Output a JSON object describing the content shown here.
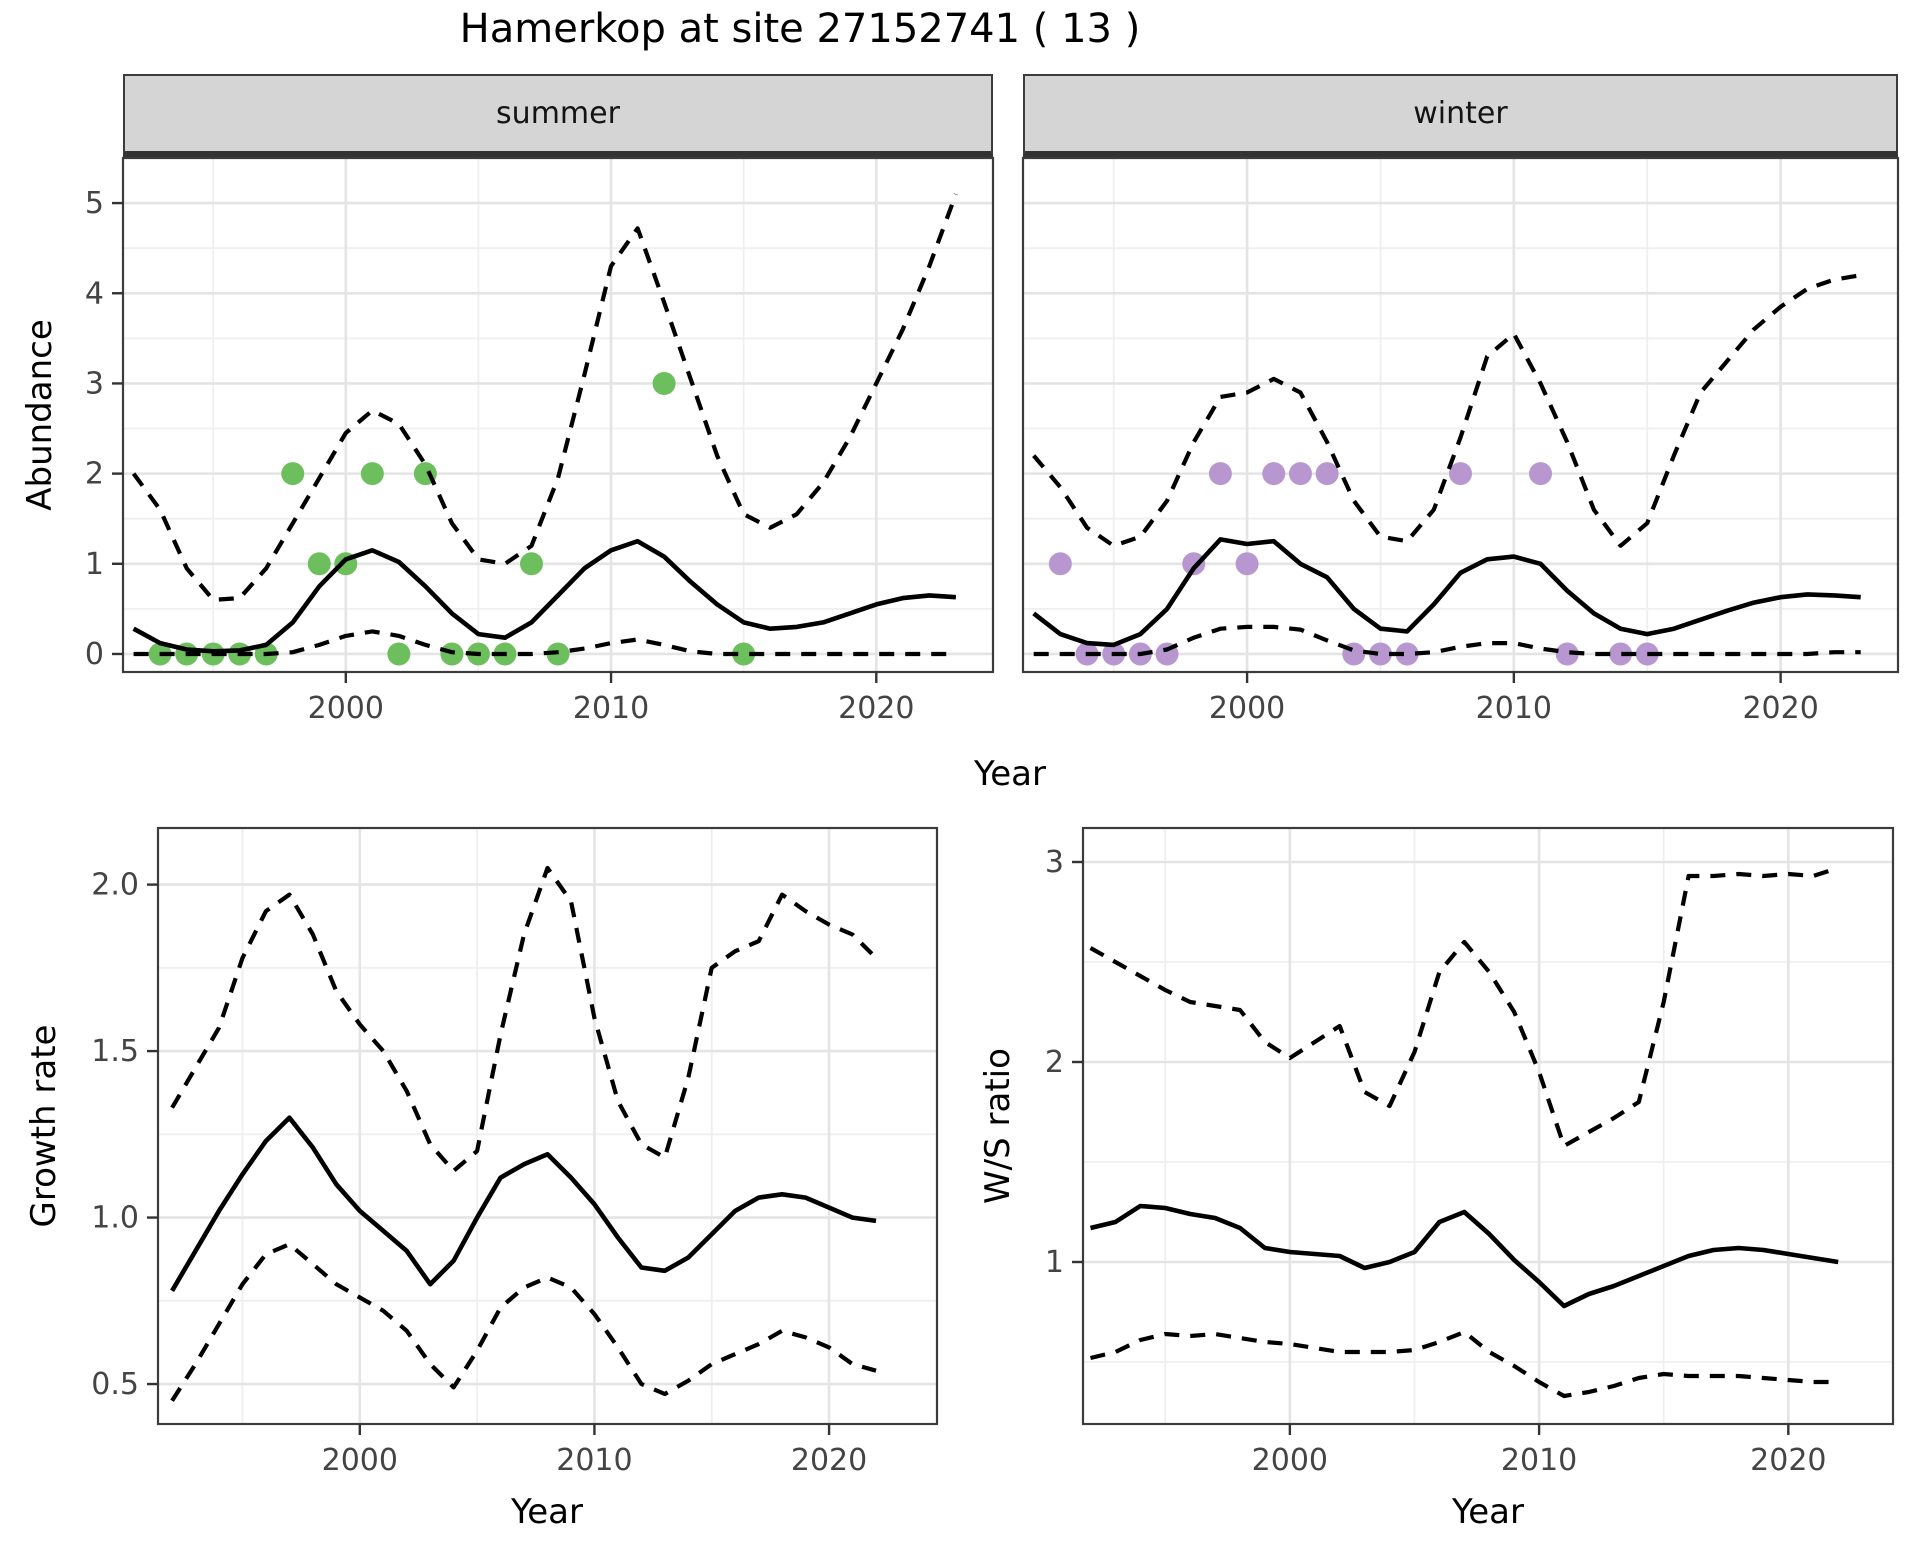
{
  "title": "Hamerkop at site 27152741 ( 13 )",
  "colors": {
    "line": "#000000",
    "observed_summer_point": "#6CBF5C",
    "observed_winter_point": "#B897D0",
    "strip_background": "#D5D5D5",
    "strip_border": "#333333",
    "panel_border": "#3C3C3C",
    "grid_major": "#E4E4E4",
    "grid_minor": "#EFEFEF",
    "tick_label": "#444444"
  },
  "chart_data": [
    {
      "id": "abundance-summer",
      "type": "line",
      "facet_label": "summer",
      "xlabel": "Year",
      "ylabel": "Abundance",
      "xlim": [
        1991.6,
        2024.4
      ],
      "ylim": [
        -0.2,
        5.5
      ],
      "x_axis": {
        "ticks": [
          {
            "value": 2000,
            "label": "2000"
          },
          {
            "value": 2010,
            "label": "2010"
          },
          {
            "value": 2020,
            "label": "2020"
          }
        ],
        "minor": [
          1995,
          2005,
          2015
        ]
      },
      "y_axis": {
        "ticks": [
          {
            "value": 0,
            "label": "0"
          },
          {
            "value": 1,
            "label": "1"
          },
          {
            "value": 2,
            "label": "2"
          },
          {
            "value": 3,
            "label": "3"
          },
          {
            "value": 4,
            "label": "4"
          },
          {
            "value": 5,
            "label": "5"
          }
        ],
        "minor": [
          0.5,
          1.5,
          2.5,
          3.5,
          4.5
        ]
      },
      "years": [
        1992,
        1993,
        1994,
        1995,
        1996,
        1997,
        1998,
        1999,
        2000,
        2001,
        2002,
        2003,
        2004,
        2005,
        2006,
        2007,
        2008,
        2009,
        2010,
        2011,
        2012,
        2013,
        2014,
        2015,
        2016,
        2017,
        2018,
        2019,
        2020,
        2021,
        2022,
        2023
      ],
      "series": [
        {
          "name": "median",
          "style": "solid",
          "values": [
            0.28,
            0.12,
            0.05,
            0.03,
            0.04,
            0.1,
            0.35,
            0.75,
            1.05,
            1.15,
            1.02,
            0.75,
            0.45,
            0.22,
            0.18,
            0.35,
            0.65,
            0.95,
            1.15,
            1.25,
            1.08,
            0.8,
            0.55,
            0.35,
            0.28,
            0.3,
            0.35,
            0.45,
            0.55,
            0.62,
            0.65,
            0.63
          ]
        },
        {
          "name": "upper CI",
          "style": "dashed",
          "values": [
            2.0,
            1.6,
            0.95,
            0.6,
            0.62,
            0.95,
            1.45,
            1.95,
            2.45,
            2.7,
            2.55,
            2.1,
            1.45,
            1.05,
            1.0,
            1.2,
            1.95,
            3.1,
            4.3,
            4.72,
            3.9,
            3.05,
            2.2,
            1.55,
            1.4,
            1.55,
            1.9,
            2.4,
            3.0,
            3.6,
            4.3,
            5.1
          ]
        },
        {
          "name": "lower CI",
          "style": "dashed",
          "values": [
            0,
            0,
            0,
            0,
            0,
            0,
            0.02,
            0.1,
            0.2,
            0.25,
            0.2,
            0.1,
            0.02,
            0,
            0,
            0,
            0.02,
            0.06,
            0.12,
            0.16,
            0.1,
            0.03,
            0,
            0,
            0,
            0,
            0,
            0,
            0,
            0,
            0,
            0
          ]
        }
      ],
      "observations": [
        [
          1993,
          0
        ],
        [
          1994,
          0
        ],
        [
          1995,
          0
        ],
        [
          1996,
          0
        ],
        [
          1997,
          0
        ],
        [
          1998,
          2
        ],
        [
          1999,
          1
        ],
        [
          2000,
          1
        ],
        [
          2001,
          2
        ],
        [
          2002,
          0
        ],
        [
          2003,
          2
        ],
        [
          2004,
          0
        ],
        [
          2005,
          0
        ],
        [
          2006,
          0
        ],
        [
          2007,
          1
        ],
        [
          2008,
          0
        ],
        [
          2012,
          3
        ],
        [
          2015,
          0
        ]
      ],
      "point_color": "#6CBF5C"
    },
    {
      "id": "abundance-winter",
      "type": "line",
      "facet_label": "winter",
      "xlabel": "Year",
      "ylabel": "Abundance",
      "xlim": [
        1991.6,
        2024.4
      ],
      "ylim": [
        -0.2,
        5.5
      ],
      "x_axis": {
        "ticks": [
          {
            "value": 2000,
            "label": "2000"
          },
          {
            "value": 2010,
            "label": "2010"
          },
          {
            "value": 2020,
            "label": "2020"
          }
        ],
        "minor": [
          1995,
          2005,
          2015
        ]
      },
      "y_axis": {
        "ticks": [
          {
            "value": 0,
            "label": "0"
          },
          {
            "value": 1,
            "label": "1"
          },
          {
            "value": 2,
            "label": "2"
          },
          {
            "value": 3,
            "label": "3"
          },
          {
            "value": 4,
            "label": "4"
          },
          {
            "value": 5,
            "label": "5"
          }
        ],
        "minor": [
          0.5,
          1.5,
          2.5,
          3.5,
          4.5
        ]
      },
      "years": [
        1992,
        1993,
        1994,
        1995,
        1996,
        1997,
        1998,
        1999,
        2000,
        2001,
        2002,
        2003,
        2004,
        2005,
        2006,
        2007,
        2008,
        2009,
        2010,
        2011,
        2012,
        2013,
        2014,
        2015,
        2016,
        2017,
        2018,
        2019,
        2020,
        2021,
        2022,
        2023
      ],
      "series": [
        {
          "name": "median",
          "style": "solid",
          "values": [
            0.45,
            0.22,
            0.12,
            0.1,
            0.22,
            0.5,
            0.95,
            1.27,
            1.22,
            1.25,
            1.0,
            0.85,
            0.5,
            0.28,
            0.25,
            0.55,
            0.9,
            1.05,
            1.08,
            1.0,
            0.7,
            0.45,
            0.28,
            0.22,
            0.28,
            0.38,
            0.48,
            0.57,
            0.63,
            0.66,
            0.65,
            0.63
          ]
        },
        {
          "name": "upper CI",
          "style": "dashed",
          "values": [
            2.2,
            1.85,
            1.4,
            1.2,
            1.3,
            1.7,
            2.35,
            2.85,
            2.9,
            3.05,
            2.9,
            2.35,
            1.7,
            1.3,
            1.25,
            1.6,
            2.4,
            3.3,
            3.55,
            3.0,
            2.35,
            1.6,
            1.2,
            1.45,
            2.2,
            2.9,
            3.25,
            3.6,
            3.85,
            4.05,
            4.15,
            4.2
          ]
        },
        {
          "name": "lower CI",
          "style": "dashed",
          "values": [
            0,
            0,
            0,
            0,
            0,
            0.05,
            0.18,
            0.28,
            0.3,
            0.3,
            0.27,
            0.15,
            0.04,
            0,
            0,
            0.02,
            0.08,
            0.12,
            0.12,
            0.06,
            0.02,
            0,
            0,
            0,
            0,
            0,
            0,
            0,
            0,
            0,
            0.02,
            0.02
          ]
        }
      ],
      "observations": [
        [
          1993,
          1
        ],
        [
          1994,
          0
        ],
        [
          1995,
          0
        ],
        [
          1996,
          0
        ],
        [
          1997,
          0
        ],
        [
          1998,
          1
        ],
        [
          1999,
          2
        ],
        [
          2000,
          1
        ],
        [
          2001,
          2
        ],
        [
          2002,
          2
        ],
        [
          2003,
          2
        ],
        [
          2004,
          0
        ],
        [
          2005,
          0
        ],
        [
          2006,
          0
        ],
        [
          2008,
          2
        ],
        [
          2011,
          2
        ],
        [
          2012,
          0
        ],
        [
          2014,
          0
        ],
        [
          2015,
          0
        ]
      ],
      "point_color": "#B897D0"
    },
    {
      "id": "growth-rate",
      "type": "line",
      "facet_label": "",
      "xlabel": "Year",
      "ylabel": "Growth rate",
      "xlim": [
        1991.4,
        2024.6
      ],
      "ylim": [
        0.38,
        2.17
      ],
      "x_axis": {
        "ticks": [
          {
            "value": 2000,
            "label": "2000"
          },
          {
            "value": 2010,
            "label": "2010"
          },
          {
            "value": 2020,
            "label": "2020"
          }
        ],
        "minor": [
          1995,
          2005,
          2015
        ]
      },
      "y_axis": {
        "ticks": [
          {
            "value": 0.5,
            "label": "0.5"
          },
          {
            "value": 1.0,
            "label": "1.0"
          },
          {
            "value": 1.5,
            "label": "1.5"
          },
          {
            "value": 2.0,
            "label": "2.0"
          }
        ],
        "minor": [
          0.75,
          1.25,
          1.75
        ]
      },
      "years": [
        1992,
        1993,
        1994,
        1995,
        1996,
        1997,
        1998,
        1999,
        2000,
        2001,
        2002,
        2003,
        2004,
        2005,
        2006,
        2007,
        2008,
        2009,
        2010,
        2011,
        2012,
        2013,
        2014,
        2015,
        2016,
        2017,
        2018,
        2019,
        2020,
        2021,
        2022
      ],
      "series": [
        {
          "name": "median",
          "style": "solid",
          "values": [
            0.78,
            0.9,
            1.02,
            1.13,
            1.23,
            1.3,
            1.21,
            1.1,
            1.02,
            0.96,
            0.9,
            0.8,
            0.87,
            1.0,
            1.12,
            1.16,
            1.19,
            1.12,
            1.04,
            0.94,
            0.85,
            0.84,
            0.88,
            0.95,
            1.02,
            1.06,
            1.07,
            1.06,
            1.03,
            1.0,
            0.99
          ]
        },
        {
          "name": "upper CI",
          "style": "dashed",
          "values": [
            1.33,
            1.45,
            1.57,
            1.78,
            1.92,
            1.97,
            1.85,
            1.68,
            1.58,
            1.5,
            1.38,
            1.22,
            1.14,
            1.2,
            1.55,
            1.85,
            2.05,
            1.95,
            1.6,
            1.35,
            1.22,
            1.18,
            1.42,
            1.75,
            1.8,
            1.83,
            1.97,
            1.92,
            1.88,
            1.85,
            1.78
          ]
        },
        {
          "name": "lower CI",
          "style": "dashed",
          "values": [
            0.45,
            0.56,
            0.68,
            0.8,
            0.89,
            0.92,
            0.86,
            0.8,
            0.76,
            0.72,
            0.66,
            0.56,
            0.49,
            0.6,
            0.73,
            0.79,
            0.82,
            0.79,
            0.71,
            0.61,
            0.5,
            0.47,
            0.51,
            0.56,
            0.59,
            0.62,
            0.66,
            0.64,
            0.61,
            0.56,
            0.54
          ]
        }
      ],
      "observations": [],
      "point_color": "#000000"
    },
    {
      "id": "ws-ratio",
      "type": "line",
      "facet_label": "",
      "xlabel": "Year",
      "ylabel": "W/S ratio",
      "xlim": [
        1991.7,
        2024.2
      ],
      "ylim": [
        0.19,
        3.17
      ],
      "x_axis": {
        "ticks": [
          {
            "value": 2000,
            "label": "2000"
          },
          {
            "value": 2010,
            "label": "2010"
          },
          {
            "value": 2020,
            "label": "2020"
          }
        ],
        "minor": [
          1995,
          2005,
          2015
        ]
      },
      "y_axis": {
        "ticks": [
          {
            "value": 1,
            "label": "1"
          },
          {
            "value": 2,
            "label": "2"
          },
          {
            "value": 3,
            "label": "3"
          }
        ],
        "minor": [
          0.5,
          1.5,
          2.5
        ]
      },
      "years": [
        1992,
        1993,
        1994,
        1995,
        1996,
        1997,
        1998,
        1999,
        2000,
        2001,
        2002,
        2003,
        2004,
        2005,
        2006,
        2007,
        2008,
        2009,
        2010,
        2011,
        2012,
        2013,
        2014,
        2015,
        2016,
        2017,
        2018,
        2019,
        2020,
        2021,
        2022
      ],
      "series": [
        {
          "name": "median",
          "style": "solid",
          "values": [
            1.17,
            1.2,
            1.28,
            1.27,
            1.24,
            1.22,
            1.17,
            1.07,
            1.05,
            1.04,
            1.03,
            0.97,
            1.0,
            1.05,
            1.2,
            1.25,
            1.14,
            1.01,
            0.9,
            0.78,
            0.84,
            0.88,
            0.93,
            0.98,
            1.03,
            1.06,
            1.07,
            1.06,
            1.04,
            1.02,
            1.0
          ]
        },
        {
          "name": "upper CI",
          "style": "dashed",
          "values": [
            2.57,
            2.5,
            2.43,
            2.36,
            2.3,
            2.28,
            2.26,
            2.1,
            2.02,
            2.1,
            2.18,
            1.85,
            1.78,
            2.05,
            2.45,
            2.6,
            2.45,
            2.25,
            1.95,
            1.58,
            1.65,
            1.72,
            1.8,
            2.3,
            2.93,
            2.93,
            2.94,
            2.93,
            2.94,
            2.93,
            2.97
          ]
        },
        {
          "name": "lower CI",
          "style": "dashed",
          "values": [
            0.52,
            0.55,
            0.61,
            0.64,
            0.63,
            0.64,
            0.62,
            0.6,
            0.59,
            0.57,
            0.55,
            0.55,
            0.55,
            0.56,
            0.6,
            0.65,
            0.55,
            0.48,
            0.4,
            0.33,
            0.35,
            0.38,
            0.42,
            0.44,
            0.43,
            0.43,
            0.43,
            0.42,
            0.41,
            0.4,
            0.4
          ]
        }
      ],
      "observations": [],
      "point_color": "#000000"
    }
  ]
}
